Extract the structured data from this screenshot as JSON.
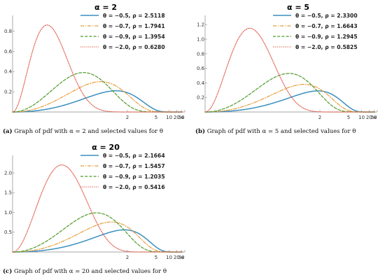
{
  "chart_data": [
    {
      "type": "line",
      "title": "α = 2",
      "x_tick_labels": [
        "2",
        "5",
        "10",
        "20",
        "50",
        "∞"
      ],
      "y_tick_labels": [
        "0.2",
        "0.4",
        "0.6",
        "0.8"
      ],
      "ylim": [
        0,
        0.9
      ],
      "legend_position": "top-right",
      "series": [
        {
          "name": "θ = −0.5, ρ = 2.5118",
          "color": "#3a8fc1",
          "dash": "solid",
          "peak_x": 1.5,
          "peak_y": 0.21
        },
        {
          "name": "θ = −0.7, ρ = 1.7941",
          "color": "#e89c3a",
          "dash": "dashdot",
          "peak_x": 1.05,
          "peak_y": 0.3
        },
        {
          "name": "θ = −0.9, ρ = 1.3954",
          "color": "#4f9a2a",
          "dash": "dashed",
          "peak_x": 0.7,
          "peak_y": 0.39
        },
        {
          "name": "θ = −2.0, ρ = 0.6280",
          "color": "#e06050",
          "dash": "dotted",
          "peak_x": 0.25,
          "peak_y": 0.86
        }
      ],
      "caption_label": "(a)",
      "caption_text": "Graph of pdf with α = 2 and selected values for θ"
    },
    {
      "type": "line",
      "title": "α = 5",
      "x_tick_labels": [
        "2",
        "5",
        "10",
        "20",
        "50",
        "∞"
      ],
      "y_tick_labels": [
        "0.2",
        "0.4",
        "0.6",
        "0.8",
        "1.0",
        "1.2"
      ],
      "ylim": [
        0,
        1.25
      ],
      "legend_position": "top-right",
      "series": [
        {
          "name": "θ = −0.5, ρ = 2.3300",
          "color": "#3a8fc1",
          "dash": "solid",
          "peak_x": 1.9,
          "peak_y": 0.29
        },
        {
          "name": "θ = −0.7, ρ = 1.6643",
          "color": "#e89c3a",
          "dash": "dashdot",
          "peak_x": 1.35,
          "peak_y": 0.38
        },
        {
          "name": "θ = −0.9, ρ = 1.2945",
          "color": "#4f9a2a",
          "dash": "dashed",
          "peak_x": 0.95,
          "peak_y": 0.53
        },
        {
          "name": "θ = −2.0, ρ = 0.5825",
          "color": "#e06050",
          "dash": "dotted",
          "peak_x": 0.35,
          "peak_y": 1.15
        }
      ],
      "caption_label": "(b)",
      "caption_text": "Graph of pdf with α = 5 and selected values for θ"
    },
    {
      "type": "line",
      "title": "α = 20",
      "x_tick_labels": [
        "2",
        "5",
        "10",
        "20",
        "50",
        "∞"
      ],
      "y_tick_labels": [
        "0.5",
        "1.0",
        "1.5",
        "2.0"
      ],
      "ylim": [
        0,
        2.3
      ],
      "legend_position": "top-right",
      "series": [
        {
          "name": "θ = −0.5, ρ = 2.1664",
          "color": "#3a8fc1",
          "dash": "solid",
          "peak_x": 1.85,
          "peak_y": 0.56
        },
        {
          "name": "θ = −0.7, ρ = 1.5457",
          "color": "#e89c3a",
          "dash": "dashdot",
          "peak_x": 1.35,
          "peak_y": 0.76
        },
        {
          "name": "θ = −0.9, ρ = 1.2035",
          "color": "#4f9a2a",
          "dash": "dashed",
          "peak_x": 0.95,
          "peak_y": 0.99
        },
        {
          "name": "θ = −2.0, ρ = 0.5416",
          "color": "#e06050",
          "dash": "dotted",
          "peak_x": 0.4,
          "peak_y": 2.2
        }
      ],
      "caption_label": "(c)",
      "caption_text": "Graph of pdf with α = 20 and selected values for θ"
    }
  ]
}
